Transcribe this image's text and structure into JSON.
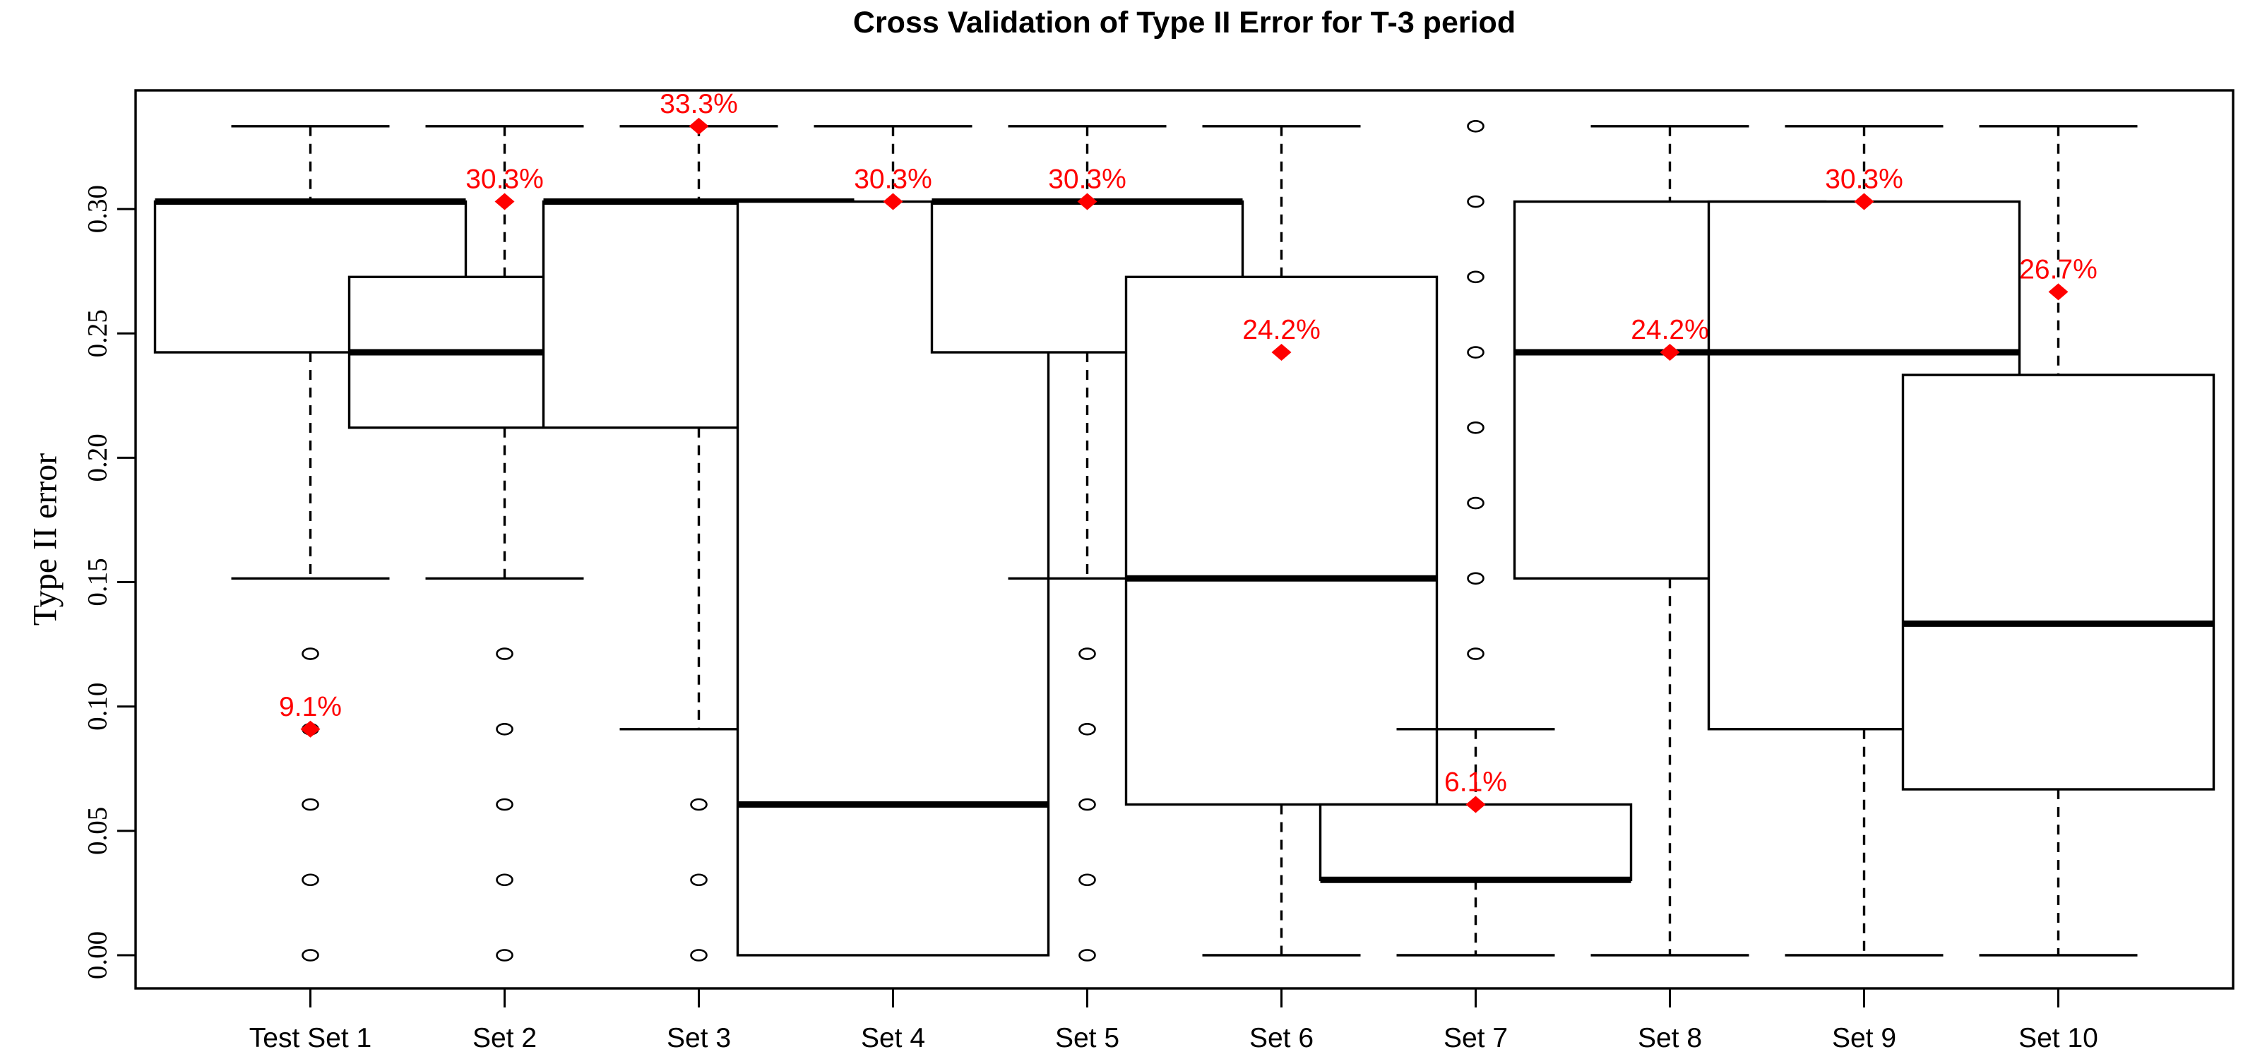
{
  "chart_data": {
    "type": "boxplot",
    "title": "Cross Validation of Type II Error for T-3 period",
    "ylabel": "Type II error",
    "xlabel": "",
    "ylim": [
      -0.01334,
      0.34772
    ],
    "grid": false,
    "colors": {
      "line": "#000000",
      "highlight": "#FF0000",
      "background": "#FFFFFF"
    },
    "yticks": [
      {
        "value": 0.0,
        "label": "0.00"
      },
      {
        "value": 0.05,
        "label": "0.05"
      },
      {
        "value": 0.1,
        "label": "0.10"
      },
      {
        "value": 0.15,
        "label": "0.15"
      },
      {
        "value": 0.2,
        "label": "0.20"
      },
      {
        "value": 0.25,
        "label": "0.25"
      },
      {
        "value": 0.3,
        "label": "0.30"
      }
    ],
    "categories": [
      "Test Set 1",
      "Set 2",
      "Set 3",
      "Set 4",
      "Set 5",
      "Set 6",
      "Set 7",
      "Set 8",
      "Set 9",
      "Set 10"
    ],
    "series": [
      {
        "label": "Test Set 1",
        "whisker_low": 0.1515,
        "q1": 0.2424,
        "median": 0.303,
        "q3": 0.303,
        "whisker_high": 0.3333,
        "outliers": [
          0.1212,
          0.0909,
          0.0606,
          0.0303,
          0.0
        ],
        "highlight": {
          "value": 0.0909,
          "label": "9.1%"
        }
      },
      {
        "label": "Set 2",
        "whisker_low": 0.1515,
        "q1": 0.2121,
        "median": 0.2424,
        "q3": 0.2727,
        "whisker_high": 0.3333,
        "outliers": [
          0.1212,
          0.0909,
          0.0606,
          0.0303,
          0.0
        ],
        "highlight": {
          "value": 0.303,
          "label": "30.3%"
        }
      },
      {
        "label": "Set 3",
        "whisker_low": 0.0909,
        "q1": 0.2121,
        "median": 0.303,
        "q3": 0.303,
        "whisker_high": 0.3333,
        "outliers": [
          0.0606,
          0.0303,
          0.0
        ],
        "highlight": {
          "value": 0.3333,
          "label": "33.3%"
        }
      },
      {
        "label": "Set 4",
        "whisker_low": 0.0,
        "q1": 0.0,
        "median": 0.0606,
        "q3": 0.303,
        "whisker_high": 0.3333,
        "outliers": [],
        "highlight": {
          "value": 0.303,
          "label": "30.3%"
        }
      },
      {
        "label": "Set 5",
        "whisker_low": 0.1515,
        "q1": 0.2424,
        "median": 0.303,
        "q3": 0.303,
        "whisker_high": 0.3333,
        "outliers": [
          0.1212,
          0.0909,
          0.0606,
          0.0303,
          0.0
        ],
        "highlight": {
          "value": 0.303,
          "label": "30.3%"
        }
      },
      {
        "label": "Set 6",
        "whisker_low": 0.0,
        "q1": 0.0606,
        "median": 0.1515,
        "q3": 0.2727,
        "whisker_high": 0.3333,
        "outliers": [],
        "highlight": {
          "value": 0.2424,
          "label": "24.2%"
        }
      },
      {
        "label": "Set 7",
        "whisker_low": 0.0,
        "q1": 0.0303,
        "median": 0.0303,
        "q3": 0.0606,
        "whisker_high": 0.0909,
        "outliers": [
          0.1212,
          0.1515,
          0.1818,
          0.2121,
          0.2424,
          0.2727,
          0.303,
          0.3333
        ],
        "highlight": {
          "value": 0.0606,
          "label": "6.1%"
        }
      },
      {
        "label": "Set 8",
        "whisker_low": 0.0,
        "q1": 0.1515,
        "median": 0.2424,
        "q3": 0.303,
        "whisker_high": 0.3333,
        "outliers": [],
        "highlight": {
          "value": 0.2424,
          "label": "24.2%"
        }
      },
      {
        "label": "Set 9",
        "whisker_low": 0.0,
        "q1": 0.0909,
        "median": 0.2424,
        "q3": 0.303,
        "whisker_high": 0.3333,
        "outliers": [],
        "highlight": {
          "value": 0.303,
          "label": "30.3%"
        }
      },
      {
        "label": "Set 10",
        "whisker_low": 0.0,
        "q1": 0.0667,
        "median": 0.1333,
        "q3": 0.2333,
        "whisker_high": 0.3333,
        "outliers": [],
        "highlight": {
          "value": 0.2667,
          "label": "26.7%"
        }
      }
    ]
  }
}
